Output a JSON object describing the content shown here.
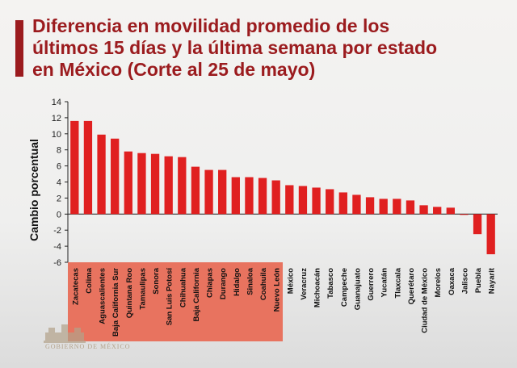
{
  "title": "Diferencia en movilidad promedio de los\núltimos 15 días y la última semana por estado\nen México (Corte al 25 de mayo)",
  "colors": {
    "accent": "#9b1b1e",
    "bar": "#e02020",
    "highlight": "#e8735f"
  },
  "logo_icon": "gobierno-de-mexico-logo-icon",
  "footer_text": "GOBIERNO DE MÉXICO",
  "chart_data": {
    "type": "bar",
    "title": "Diferencia en movilidad promedio de los últimos 15 días y la última semana por estado en México (Corte al 25 de mayo)",
    "ylabel": "Cambio porcentual",
    "xlabel": "",
    "ylim": [
      -6,
      14
    ],
    "yticks": [
      14,
      12,
      10,
      8,
      6,
      4,
      2,
      0,
      -2,
      -4,
      -6
    ],
    "grid": false,
    "highlighted_range": [
      "Zacatecas",
      "Nuevo León"
    ],
    "categories": [
      "Zacatecas",
      "Colima",
      "Aguascalientes",
      "Baja California Sur",
      "Quintana Roo",
      "Tamaulipas",
      "Sonora",
      "San Luis Potosí",
      "Chihuahua",
      "Baja California",
      "Chiapas",
      "Durango",
      "Hidalgo",
      "Sinaloa",
      "Coahuila",
      "Nuevo León",
      "México",
      "Veracruz",
      "Michoacán",
      "Tabasco",
      "Campeche",
      "Guanajuato",
      "Guerrero",
      "Yucatán",
      "Tlaxcala",
      "Querétaro",
      "Ciudad de México",
      "Morelos",
      "Oaxaca",
      "Jalisco",
      "Puebla",
      "Nayarit"
    ],
    "values": [
      11.6,
      11.6,
      9.9,
      9.4,
      7.8,
      7.6,
      7.5,
      7.2,
      7.1,
      5.9,
      5.5,
      5.5,
      4.6,
      4.6,
      4.5,
      4.2,
      3.6,
      3.5,
      3.3,
      3.1,
      2.7,
      2.4,
      2.1,
      1.9,
      1.9,
      1.7,
      1.1,
      0.9,
      0.8,
      -0.1,
      -2.5,
      -5.0
    ]
  }
}
